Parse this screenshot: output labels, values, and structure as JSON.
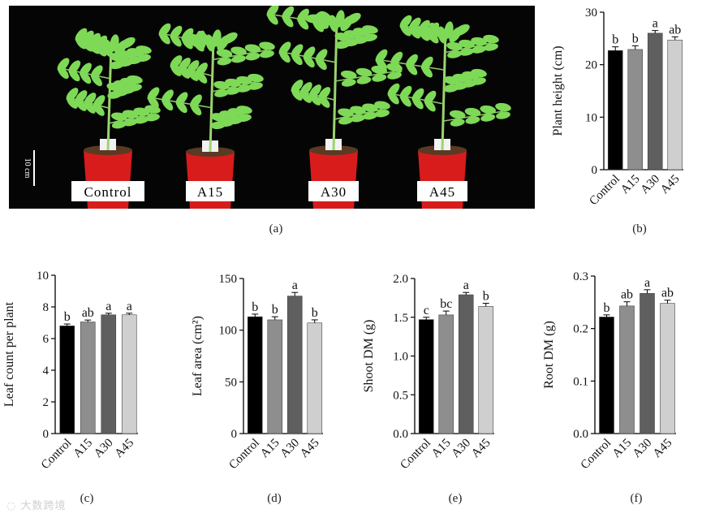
{
  "photo": {
    "scale_label": "10 cm",
    "pots": [
      "Control",
      "A15",
      "A30",
      "A45"
    ]
  },
  "panel_letters": [
    "(a)",
    "(b)",
    "(c)",
    "(d)",
    "(e)",
    "(f)"
  ],
  "watermark": "大数跨境",
  "colors": {
    "Control": "#000000",
    "A15": "#8e8e8e",
    "A30": "#5f5f5f",
    "A45": "#cfcfcf"
  },
  "chart_data": [
    {
      "id": "b",
      "type": "bar",
      "categories": [
        "Control",
        "A15",
        "A30",
        "A45"
      ],
      "values": [
        22.7,
        22.9,
        26.0,
        24.7
      ],
      "errors": [
        0.7,
        0.7,
        0.5,
        0.6
      ],
      "letters": [
        "b",
        "b",
        "a",
        "ab"
      ],
      "ylabel": "Plant height (cm)",
      "ylim": [
        0,
        30
      ],
      "yticks": [
        "0",
        "10",
        "20",
        "30"
      ]
    },
    {
      "id": "c",
      "type": "bar",
      "categories": [
        "Control",
        "A15",
        "A30",
        "A45"
      ],
      "values": [
        6.8,
        7.05,
        7.5,
        7.5
      ],
      "errors": [
        0.12,
        0.12,
        0.1,
        0.1
      ],
      "letters": [
        "b",
        "ab",
        "a",
        "a"
      ],
      "ylabel": "Leaf count per plant",
      "ylim": [
        0,
        10
      ],
      "yticks": [
        "0",
        "2",
        "4",
        "6",
        "8",
        "10"
      ]
    },
    {
      "id": "d",
      "type": "bar",
      "categories": [
        "Control",
        "A15",
        "A30",
        "A45"
      ],
      "values": [
        113,
        110,
        133,
        107
      ],
      "errors": [
        2.5,
        3,
        3.5,
        3
      ],
      "letters": [
        "b",
        "b",
        "a",
        "b"
      ],
      "ylabel": "Leaf area (cm²)",
      "ylim": [
        0,
        150
      ],
      "yticks": [
        "0",
        "50",
        "100",
        "150"
      ]
    },
    {
      "id": "e",
      "type": "bar",
      "categories": [
        "Control",
        "A15",
        "A30",
        "A45"
      ],
      "values": [
        1.47,
        1.53,
        1.79,
        1.64
      ],
      "errors": [
        0.03,
        0.05,
        0.03,
        0.04
      ],
      "letters": [
        "c",
        "bc",
        "a",
        "b"
      ],
      "ylabel": "Shoot DM (g)",
      "ylim": [
        0,
        2.0
      ],
      "yticks": [
        "0.0",
        "0.5",
        "1.0",
        "1.5",
        "2.0"
      ]
    },
    {
      "id": "f",
      "type": "bar",
      "categories": [
        "Control",
        "A15",
        "A30",
        "A45"
      ],
      "values": [
        0.222,
        0.243,
        0.267,
        0.248
      ],
      "errors": [
        0.004,
        0.008,
        0.007,
        0.006
      ],
      "letters": [
        "b",
        "ab",
        "a",
        "ab"
      ],
      "ylabel": "Root DM (g)",
      "ylim": [
        0,
        0.3
      ],
      "yticks": [
        "0.0",
        "0.1",
        "0.2",
        "0.3"
      ]
    }
  ]
}
